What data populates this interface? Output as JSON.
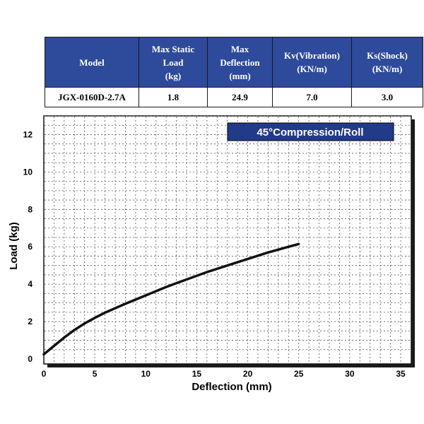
{
  "table": {
    "headers": [
      "Model",
      "Max Static\nLoad\n(kg)",
      "Max\nDeflection\n(mm)",
      "Kv(Vibration)\n(KN/m)",
      "Ks(Shock)\n(KN/m)"
    ],
    "row": [
      "JGX-0160D-2.7A",
      "1.8",
      "24.9",
      "7.0",
      "3.0"
    ]
  },
  "colors": {
    "header_bg": "#2e4a9a",
    "badge_bg": "#223a8a",
    "curve": "#111111",
    "grid": "#555555"
  },
  "chart_data": {
    "type": "line",
    "title": "45°Compression/Roll",
    "xlabel": "Deflection (mm)",
    "ylabel": "Load (kg)",
    "xlim": [
      0,
      35
    ],
    "ylim": [
      0,
      13
    ],
    "xticks": [
      "0",
      "5",
      "10",
      "15",
      "20",
      "25",
      "30",
      "35"
    ],
    "yticks": [
      "0",
      "2",
      "4",
      "6",
      "8",
      "10",
      "12"
    ],
    "grid": true,
    "series": [
      {
        "x": [
          0,
          1,
          2,
          3,
          4,
          5,
          6,
          8,
          10,
          12,
          14,
          16,
          18,
          20,
          22,
          24,
          25
        ],
        "y": [
          0.25,
          0.7,
          1.15,
          1.55,
          1.9,
          2.2,
          2.48,
          2.95,
          3.4,
          3.85,
          4.25,
          4.65,
          5.0,
          5.35,
          5.7,
          6.0,
          6.15
        ]
      }
    ]
  }
}
